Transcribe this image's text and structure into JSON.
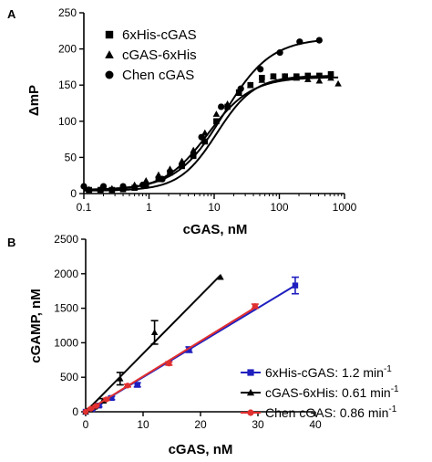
{
  "chart_data": [
    {
      "panel_label": "A",
      "type": "scatter",
      "x_scale": "log",
      "xlabel": "cGAS, nM",
      "ylabel": "ΔmP",
      "xlim": [
        0.1,
        1000
      ],
      "ylim": [
        0,
        250
      ],
      "x_ticks": [
        0.1,
        1,
        10,
        100,
        1000
      ],
      "x_tick_labels": [
        "0.1",
        "1",
        "10",
        "100",
        "1000"
      ],
      "y_ticks": [
        0,
        50,
        100,
        150,
        200,
        250
      ],
      "y_tick_labels": [
        "0",
        "50",
        "100",
        "150",
        "200",
        "250"
      ],
      "legend_position": "top-left",
      "grid": false,
      "series": [
        {
          "name": "6xHis-cGAS",
          "marker": "square",
          "color": "#000000",
          "x": [
            0.12,
            0.18,
            0.27,
            0.4,
            0.6,
            0.9,
            1.4,
            2.1,
            3.2,
            4.8,
            7.2,
            10.8,
            16,
            24,
            36,
            54,
            81,
            122,
            183,
            274,
            411,
            617
          ],
          "y": [
            5,
            5,
            5,
            6,
            8,
            12,
            20,
            29,
            38,
            52,
            72,
            100,
            120,
            140,
            150,
            160,
            162,
            162,
            162,
            163,
            163,
            165
          ],
          "fit": {
            "bottom": 4,
            "top": 163,
            "ec50": 11,
            "hill": 1.5
          }
        },
        {
          "name": "cGAS-6xHis",
          "marker": "triangle",
          "color": "#000000",
          "x": [
            0.12,
            0.18,
            0.27,
            0.4,
            0.6,
            0.9,
            1.4,
            2.1,
            3.2,
            4.8,
            7.2,
            10.8,
            16,
            24,
            36,
            54,
            81,
            122,
            183,
            274,
            411,
            617,
            800
          ],
          "y": [
            6,
            6,
            7,
            9,
            12,
            18,
            26,
            34,
            45,
            60,
            84,
            110,
            124,
            139,
            150,
            157,
            162,
            162,
            160,
            158,
            156,
            160,
            152
          ],
          "fit": {
            "bottom": 4,
            "top": 161,
            "ec50": 8,
            "hill": 1.3
          }
        },
        {
          "name": "Chen cGAS",
          "marker": "circle",
          "color": "#000000",
          "x": [
            0.1,
            0.2,
            0.4,
            0.8,
            1.6,
            3.2,
            6.4,
            12.8,
            25.6,
            51.2,
            102,
            205,
            410
          ],
          "y": [
            10,
            10,
            10,
            12,
            20,
            40,
            78,
            120,
            145,
            172,
            195,
            210,
            212
          ],
          "fit": {
            "bottom": 5,
            "top": 215,
            "ec50": 14,
            "hill": 1.2
          }
        }
      ]
    },
    {
      "panel_label": "B",
      "type": "scatter",
      "xlabel": "cGAS, nM",
      "ylabel": "cGAMP, nM",
      "xlim": [
        0,
        40
      ],
      "ylim": [
        0,
        2500
      ],
      "x_ticks": [
        0,
        10,
        20,
        30,
        40
      ],
      "x_tick_labels": [
        "0",
        "10",
        "20",
        "30",
        "40"
      ],
      "y_ticks": [
        0,
        500,
        1000,
        1500,
        2000,
        2500
      ],
      "y_tick_labels": [
        "0",
        "500",
        "1000",
        "1500",
        "2000",
        "2500"
      ],
      "legend_position": "bottom-right",
      "grid": false,
      "series": [
        {
          "name": "6xHis-cGAS: 1.2 min",
          "superscript": "-1",
          "marker": "square",
          "color": "#1f1fbf",
          "x": [
            0,
            1.1,
            2.3,
            4.5,
            9,
            18,
            36.5
          ],
          "y": [
            0,
            40,
            90,
            200,
            390,
            900,
            1830
          ],
          "err": [
            0,
            15,
            20,
            25,
            30,
            40,
            120
          ],
          "fit_line": {
            "x": [
              0,
              36.5
            ],
            "y": [
              0,
              1830
            ]
          }
        },
        {
          "name": "cGAS-6xHis:  0.61 min",
          "superscript": "-1",
          "marker": "triangle",
          "color": "#000000",
          "x": [
            0,
            0.7,
            1.5,
            3,
            6,
            12,
            23.5
          ],
          "y": [
            0,
            30,
            70,
            160,
            480,
            1150,
            1950
          ],
          "err": [
            0,
            10,
            20,
            30,
            90,
            170,
            0
          ],
          "fit_line": {
            "x": [
              0,
              23.5
            ],
            "y": [
              0,
              1980
            ]
          }
        },
        {
          "name": "Chen cGAS:  0.86 min",
          "superscript": "-1",
          "marker": "circle",
          "color": "#e03030",
          "x": [
            0,
            0.9,
            1.8,
            3.6,
            7.3,
            14.5,
            29.5
          ],
          "y": [
            0,
            45,
            85,
            180,
            380,
            700,
            1530
          ],
          "err": [
            0,
            10,
            10,
            15,
            20,
            25,
            30
          ],
          "fit_line": {
            "x": [
              0,
              29.5
            ],
            "y": [
              0,
              1510
            ]
          }
        }
      ]
    }
  ]
}
